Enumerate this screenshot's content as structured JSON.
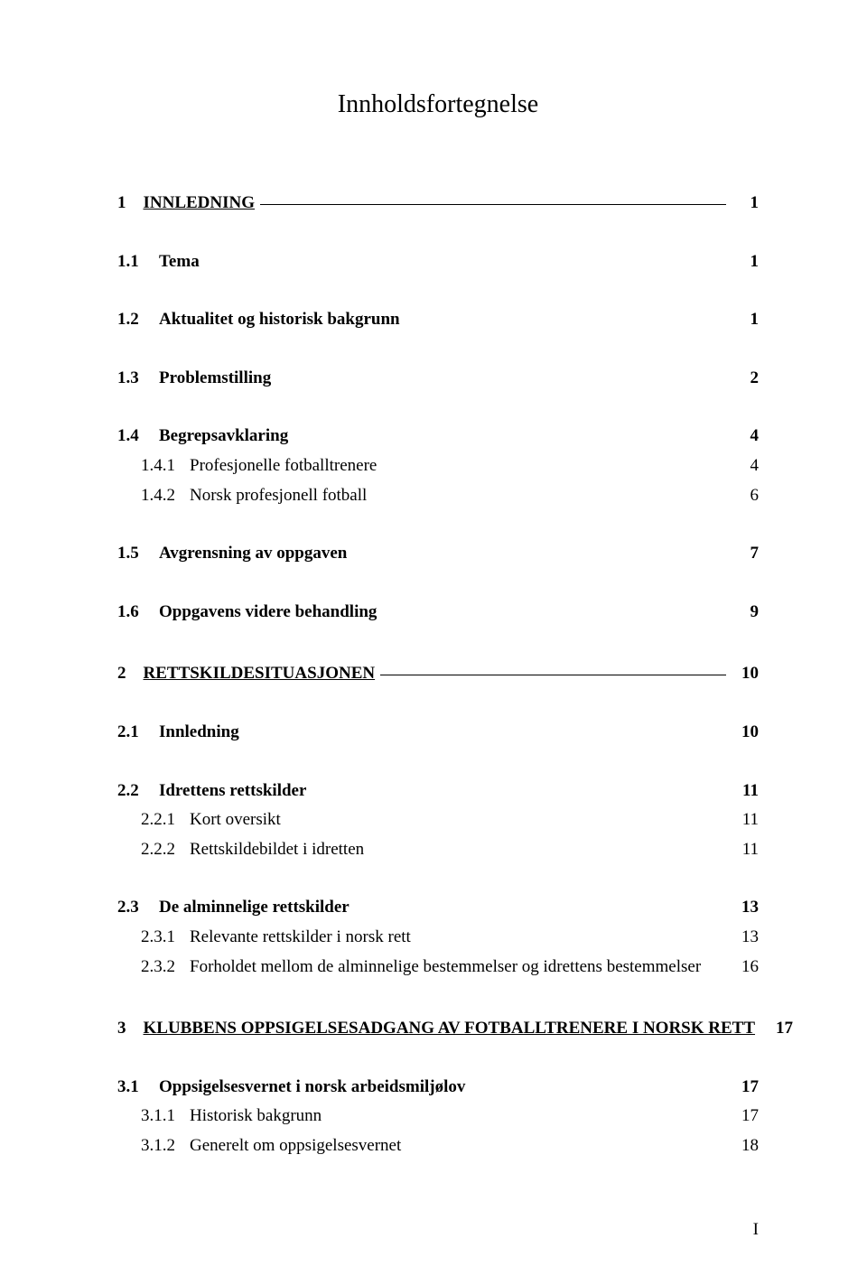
{
  "title": "Innholdsfortegnelse",
  "footer_page": "I",
  "toc": {
    "s1": {
      "num": "1",
      "label": "INNLEDNING",
      "page": "1"
    },
    "s1_1": {
      "num": "1.1",
      "label": "Tema",
      "page": "1"
    },
    "s1_2": {
      "num": "1.2",
      "label": "Aktualitet og historisk bakgrunn",
      "page": "1"
    },
    "s1_3": {
      "num": "1.3",
      "label": "Problemstilling",
      "page": "2"
    },
    "s1_4": {
      "num": "1.4",
      "label": "Begrepsavklaring",
      "page": "4"
    },
    "s1_4_1": {
      "num": "1.4.1",
      "label": "Profesjonelle fotballtrenere",
      "page": "4"
    },
    "s1_4_2": {
      "num": "1.4.2",
      "label": "Norsk profesjonell fotball",
      "page": "6"
    },
    "s1_5": {
      "num": "1.5",
      "label": "Avgrensning av oppgaven",
      "page": "7"
    },
    "s1_6": {
      "num": "1.6",
      "label": "Oppgavens videre behandling",
      "page": "9"
    },
    "s2": {
      "num": "2",
      "label": "RETTSKILDESITUASJONEN",
      "page": "10"
    },
    "s2_1": {
      "num": "2.1",
      "label": "Innledning",
      "page": "10"
    },
    "s2_2": {
      "num": "2.2",
      "label": "Idrettens rettskilder",
      "page": "11"
    },
    "s2_2_1": {
      "num": "2.2.1",
      "label": "Kort oversikt",
      "page": "11"
    },
    "s2_2_2": {
      "num": "2.2.2",
      "label": "Rettskildebildet i idretten",
      "page": "11"
    },
    "s2_3": {
      "num": "2.3",
      "label": "De alminnelige rettskilder",
      "page": "13"
    },
    "s2_3_1": {
      "num": "2.3.1",
      "label": "Relevante rettskilder i norsk rett",
      "page": "13"
    },
    "s2_3_2": {
      "num": "2.3.2",
      "label": "Forholdet mellom de alminnelige bestemmelser og idrettens bestemmelser",
      "page": "16"
    },
    "s3": {
      "num": "3",
      "label": "KLUBBENS OPPSIGELSESADGANG AV FOTBALLTRENERE I NORSK RETT",
      "page": "17"
    },
    "s3_1": {
      "num": "3.1",
      "label": "Oppsigelsesvernet i norsk arbeidsmiljølov",
      "page": "17"
    },
    "s3_1_1": {
      "num": "3.1.1",
      "label": "Historisk bakgrunn",
      "page": "17"
    },
    "s3_1_2": {
      "num": "3.1.2",
      "label": "Generelt om oppsigelsesvernet",
      "page": "18"
    }
  }
}
